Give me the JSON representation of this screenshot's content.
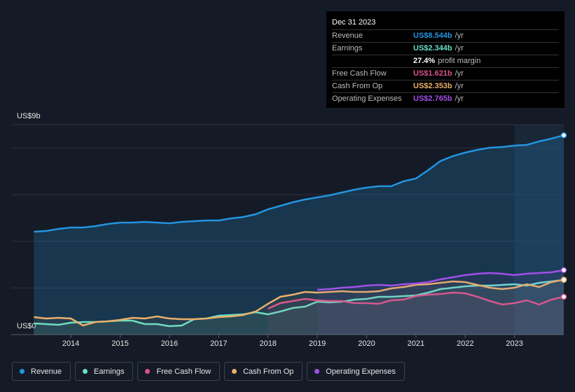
{
  "chart_data": {
    "type": "line",
    "x": [
      2013.25,
      2013.5,
      2013.75,
      2014,
      2014.25,
      2014.5,
      2014.75,
      2015,
      2015.25,
      2015.5,
      2015.75,
      2016,
      2016.25,
      2016.5,
      2016.75,
      2017,
      2017.25,
      2017.5,
      2017.75,
      2018,
      2018.25,
      2018.5,
      2018.75,
      2019,
      2019.25,
      2019.5,
      2019.75,
      2020,
      2020.25,
      2020.5,
      2020.75,
      2021,
      2021.25,
      2021.5,
      2021.75,
      2022,
      2022.25,
      2022.5,
      2022.75,
      2023,
      2023.25,
      2023.5,
      2023.75,
      2024
    ],
    "series": [
      {
        "name": "Revenue",
        "color": "#2394df",
        "values": [
          4.41,
          4.44,
          4.53,
          4.59,
          4.59,
          4.65,
          4.74,
          4.8,
          4.8,
          4.83,
          4.8,
          4.77,
          4.83,
          4.86,
          4.89,
          4.89,
          4.98,
          5.04,
          5.16,
          5.37,
          5.52,
          5.67,
          5.79,
          5.88,
          5.97,
          6.09,
          6.21,
          6.3,
          6.36,
          6.36,
          6.57,
          6.69,
          7.05,
          7.44,
          7.65,
          7.8,
          7.92,
          8.01,
          8.04,
          8.1,
          8.13,
          8.28,
          8.4,
          8.544
        ]
      },
      {
        "name": "Earnings",
        "color": "#67e0c8",
        "values": [
          0.48,
          0.45,
          0.42,
          0.51,
          0.54,
          0.54,
          0.57,
          0.6,
          0.6,
          0.45,
          0.45,
          0.36,
          0.39,
          0.66,
          0.69,
          0.81,
          0.84,
          0.87,
          0.96,
          0.87,
          0.99,
          1.14,
          1.2,
          1.41,
          1.38,
          1.41,
          1.5,
          1.53,
          1.62,
          1.62,
          1.65,
          1.68,
          1.8,
          1.95,
          2.01,
          2.07,
          2.1,
          2.1,
          2.13,
          2.16,
          2.1,
          2.22,
          2.28,
          2.344
        ]
      },
      {
        "name": "Free Cash Flow",
        "color": "#d9538a",
        "values": [
          null,
          null,
          null,
          null,
          null,
          null,
          null,
          null,
          null,
          null,
          null,
          null,
          null,
          null,
          null,
          null,
          null,
          null,
          null,
          1.11,
          1.35,
          1.44,
          1.53,
          1.47,
          1.44,
          1.44,
          1.35,
          1.35,
          1.32,
          1.47,
          1.5,
          1.65,
          1.71,
          1.74,
          1.8,
          1.77,
          1.62,
          1.44,
          1.29,
          1.35,
          1.47,
          1.29,
          1.5,
          1.621
        ]
      },
      {
        "name": "Cash From Op",
        "color": "#e9b06a",
        "values": [
          0.75,
          0.69,
          0.72,
          0.69,
          0.39,
          0.54,
          0.57,
          0.63,
          0.72,
          0.69,
          0.78,
          0.69,
          0.66,
          0.66,
          0.69,
          0.75,
          0.78,
          0.84,
          0.99,
          1.32,
          1.62,
          1.71,
          1.83,
          1.8,
          1.83,
          1.86,
          1.83,
          1.83,
          1.86,
          1.98,
          2.04,
          2.13,
          2.16,
          2.22,
          2.28,
          2.25,
          2.13,
          2.01,
          1.95,
          2.01,
          2.16,
          2.04,
          2.25,
          2.353
        ]
      },
      {
        "name": "Operating Expenses",
        "color": "#a14fe8",
        "values": [
          null,
          null,
          null,
          null,
          null,
          null,
          null,
          null,
          null,
          null,
          null,
          null,
          null,
          null,
          null,
          null,
          null,
          null,
          null,
          null,
          null,
          null,
          null,
          1.92,
          1.95,
          2.01,
          2.04,
          2.1,
          2.13,
          2.1,
          2.16,
          2.19,
          2.25,
          2.37,
          2.46,
          2.55,
          2.61,
          2.64,
          2.61,
          2.55,
          2.61,
          2.64,
          2.67,
          2.765
        ]
      }
    ],
    "xlim": [
      2012.79,
      2024.0
    ],
    "xticks": [
      2014,
      2015,
      2016,
      2017,
      2018,
      2019,
      2020,
      2021,
      2022,
      2023
    ],
    "ylim": [
      0,
      9
    ],
    "yticks": [
      {
        "value": 0,
        "label": "US$0"
      },
      {
        "value": 9,
        "label": "US$9b"
      }
    ],
    "grid_lines": [
      2,
      4,
      6,
      8
    ],
    "shaded_from": 2023
  },
  "tooltip": {
    "date": "Dec 31 2023",
    "rows": [
      {
        "label": "Revenue",
        "value": "US$8.544b",
        "unit": "/yr",
        "color": "#2394df"
      },
      {
        "label": "Earnings",
        "value": "US$2.344b",
        "unit": "/yr",
        "color": "#67e0c8"
      },
      {
        "label": "",
        "value": "27.4%",
        "unit": "profit margin",
        "color": "#ffffff"
      },
      {
        "label": "Free Cash Flow",
        "value": "US$1.621b",
        "unit": "/yr",
        "color": "#d9538a"
      },
      {
        "label": "Cash From Op",
        "value": "US$2.353b",
        "unit": "/yr",
        "color": "#e9b06a"
      },
      {
        "label": "Operating Expenses",
        "value": "US$2.765b",
        "unit": "/yr",
        "color": "#a14fe8"
      }
    ]
  }
}
